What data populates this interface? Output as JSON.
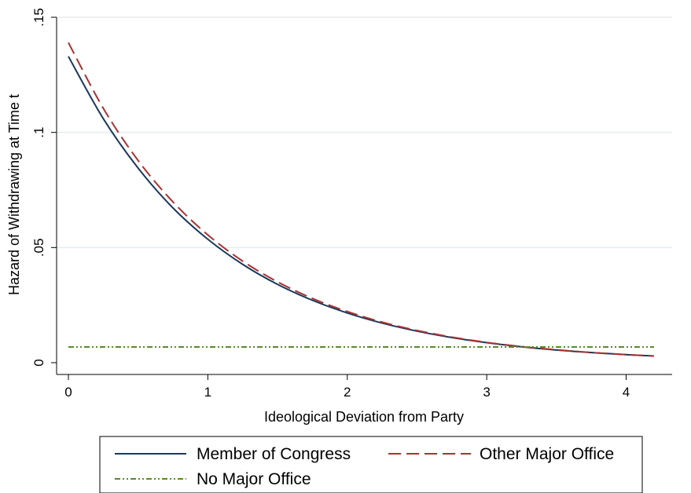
{
  "chart_data": {
    "type": "line",
    "title": "",
    "xlabel": "Ideological Deviation from Party",
    "ylabel": "Hazard of Withdrawing at Time t",
    "xlim": [
      0,
      4.2
    ],
    "ylim": [
      0,
      0.15
    ],
    "x_ticks": [
      {
        "value": 0,
        "label": "0"
      },
      {
        "value": 1,
        "label": "1"
      },
      {
        "value": 2,
        "label": "2"
      },
      {
        "value": 3,
        "label": "3"
      },
      {
        "value": 4,
        "label": "4"
      }
    ],
    "y_ticks": [
      {
        "value": 0,
        "label": "0"
      },
      {
        "value": 0.05,
        "label": ".05"
      },
      {
        "value": 0.1,
        "label": ".1"
      },
      {
        "value": 0.15,
        "label": ".15"
      }
    ],
    "grid": "horizontal",
    "legend_position": "bottom",
    "series": [
      {
        "name": "Member of Congress",
        "color": "#1a3a5c",
        "style": "solid",
        "x": [
          0,
          0.25,
          0.5,
          0.75,
          1,
          1.25,
          1.5,
          1.75,
          2,
          2.25,
          2.5,
          2.75,
          3,
          3.25,
          3.5,
          3.75,
          4,
          4.2
        ],
        "values": [
          0.133,
          0.106,
          0.0845,
          0.0672,
          0.0536,
          0.0427,
          0.034,
          0.0271,
          0.0216,
          0.0172,
          0.0137,
          0.0109,
          0.0087,
          0.0069,
          0.0055,
          0.0044,
          0.0035,
          0.0029
        ]
      },
      {
        "name": "Other Major Office",
        "color": "#a83232",
        "style": "dashed",
        "x": [
          0,
          0.25,
          0.5,
          0.75,
          1,
          1.25,
          1.5,
          1.75,
          2,
          2.25,
          2.5,
          2.75,
          3,
          3.25,
          3.5,
          3.75,
          4,
          4.2
        ],
        "values": [
          0.139,
          0.1105,
          0.0878,
          0.0698,
          0.0555,
          0.0441,
          0.0351,
          0.0279,
          0.0222,
          0.0176,
          0.014,
          0.0111,
          0.0088,
          0.007,
          0.0056,
          0.0044,
          0.0035,
          0.0029
        ]
      },
      {
        "name": "No Major Office",
        "color": "#5a8a2a",
        "style": "dashdot",
        "x": [
          0,
          4.2
        ],
        "values": [
          0.0068,
          0.0068
        ]
      }
    ]
  }
}
